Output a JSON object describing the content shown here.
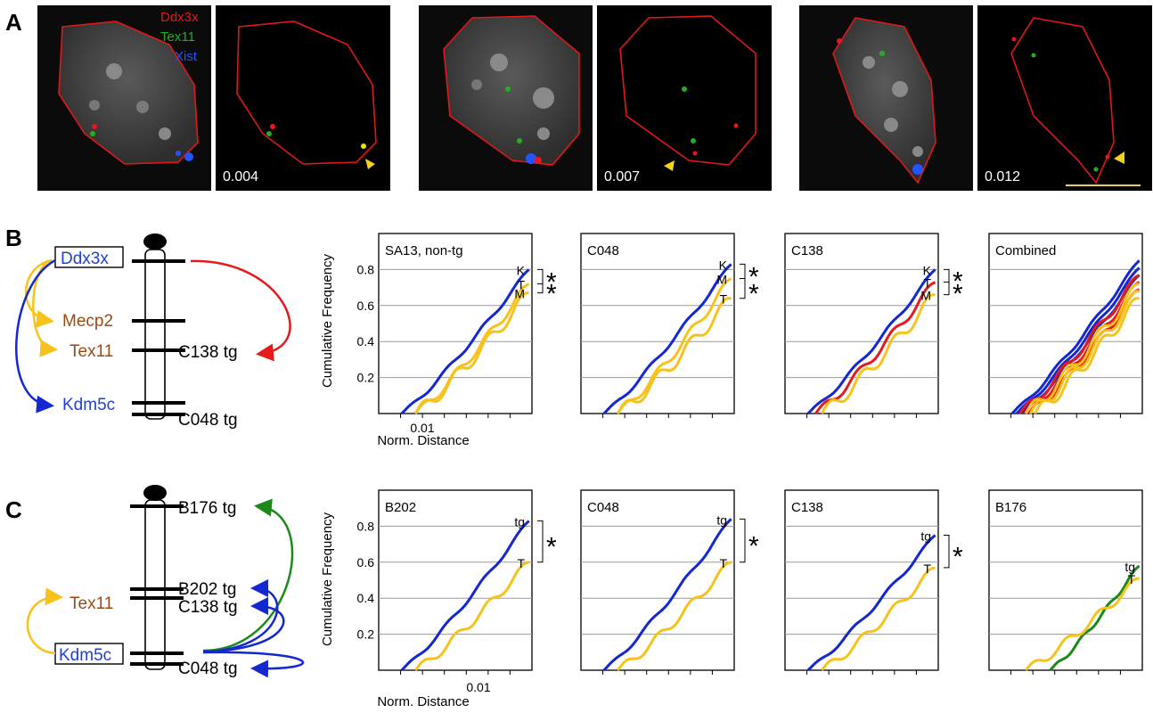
{
  "colors": {
    "ddx3x": "#e8141e",
    "tex11": "#22b022",
    "xist": "#2255ff",
    "outline": "#e01818",
    "blue_line": "#1428d2",
    "yellow_line": "#f7c21b",
    "red_line": "#e41a1c",
    "green_line": "#1b8a1b",
    "brown_text": "#9b4a14",
    "blue_text": "#1f3fd8"
  },
  "panel_a": {
    "letter": "A",
    "legend": [
      "Ddx3x",
      "Tex11",
      "Xist"
    ],
    "distances": [
      "0.004",
      "0.007",
      "0.012"
    ]
  },
  "panel_b": {
    "letter": "B",
    "genes": {
      "ddx3x": "Ddx3x",
      "mecp2": "Mecp2",
      "tex11": "Tex11",
      "kdm5c": "Kdm5c"
    },
    "transgenes": {
      "c138": "C138 tg",
      "c048": "C048 tg"
    }
  },
  "panel_c": {
    "letter": "C",
    "genes": {
      "tex11": "Tex11",
      "kdm5c": "Kdm5c"
    },
    "transgenes": {
      "b176": "B176 tg",
      "b202": "B202 tg",
      "c138": "C138 tg",
      "c048": "C048 tg"
    }
  },
  "axes": {
    "ylabel": "Cumulative Frequency",
    "xlabel": "Norm. Distance",
    "xtick": "0.01",
    "yticks": [
      "0.2",
      "0.4",
      "0.6",
      "0.8"
    ],
    "star": "*"
  },
  "chart_data": [
    {
      "type": "line",
      "title": "SA13, non-tg",
      "ylabel": "Cumulative Frequency",
      "xlabel": "Norm. Distance",
      "ylim": [
        0,
        1
      ],
      "x_tick_labels": [
        "0.01"
      ],
      "end_labels": [
        "K",
        "T",
        "M"
      ],
      "significance": [
        "*",
        "*"
      ],
      "series": [
        {
          "name": "K",
          "color": "blue",
          "end_value": 0.8
        },
        {
          "name": "T",
          "color": "yellow",
          "end_value": 0.72
        },
        {
          "name": "M",
          "color": "yellow",
          "end_value": 0.67
        }
      ]
    },
    {
      "type": "line",
      "title": "C048",
      "ylim": [
        0,
        1
      ],
      "end_labels": [
        "K",
        "M",
        "T"
      ],
      "significance": [
        "*",
        "*"
      ],
      "series": [
        {
          "name": "K",
          "color": "blue",
          "end_value": 0.83
        },
        {
          "name": "M",
          "color": "yellow",
          "end_value": 0.75
        },
        {
          "name": "T",
          "color": "yellow",
          "end_value": 0.64
        }
      ]
    },
    {
      "type": "line",
      "title": "C138",
      "ylim": [
        0,
        1
      ],
      "end_labels": [
        "K",
        "T",
        "M"
      ],
      "significance": [
        "*",
        "*"
      ],
      "series": [
        {
          "name": "K",
          "color": "blue",
          "end_value": 0.8
        },
        {
          "name": "T",
          "color": "red",
          "end_value": 0.73
        },
        {
          "name": "M",
          "color": "yellow",
          "end_value": 0.66
        }
      ]
    },
    {
      "type": "line",
      "title": "Combined",
      "ylim": [
        0,
        1
      ],
      "end_labels": [],
      "significance": [],
      "series": [
        {
          "name": "K",
          "color": "blue",
          "end_value": 0.85
        },
        {
          "name": "T",
          "color": "red",
          "end_value": 0.77
        },
        {
          "name": "M",
          "color": "yellow",
          "end_value": 0.72
        }
      ]
    },
    {
      "type": "line",
      "title": "B202",
      "ylim": [
        0,
        1
      ],
      "end_labels": [
        "tg",
        "T"
      ],
      "significance": [
        "*"
      ],
      "series": [
        {
          "name": "tg",
          "color": "blue",
          "end_value": 0.83
        },
        {
          "name": "T",
          "color": "yellow",
          "end_value": 0.6
        }
      ]
    },
    {
      "type": "line",
      "title": "C048",
      "ylim": [
        0,
        1
      ],
      "end_labels": [
        "tg",
        "T"
      ],
      "significance": [
        "*"
      ],
      "series": [
        {
          "name": "tg",
          "color": "blue",
          "end_value": 0.84
        },
        {
          "name": "T",
          "color": "yellow",
          "end_value": 0.6
        }
      ]
    },
    {
      "type": "line",
      "title": "C138",
      "ylim": [
        0,
        1
      ],
      "end_labels": [
        "tg",
        "T"
      ],
      "significance": [
        "*"
      ],
      "series": [
        {
          "name": "tg",
          "color": "blue",
          "end_value": 0.75
        },
        {
          "name": "T",
          "color": "yellow",
          "end_value": 0.57
        }
      ]
    },
    {
      "type": "line",
      "title": "B176",
      "ylim": [
        0,
        1
      ],
      "end_labels": [
        "tg",
        "T"
      ],
      "significance": [],
      "series": [
        {
          "name": "tg",
          "color": "green",
          "end_value": 0.58
        },
        {
          "name": "T",
          "color": "yellow",
          "end_value": 0.51
        }
      ]
    }
  ]
}
